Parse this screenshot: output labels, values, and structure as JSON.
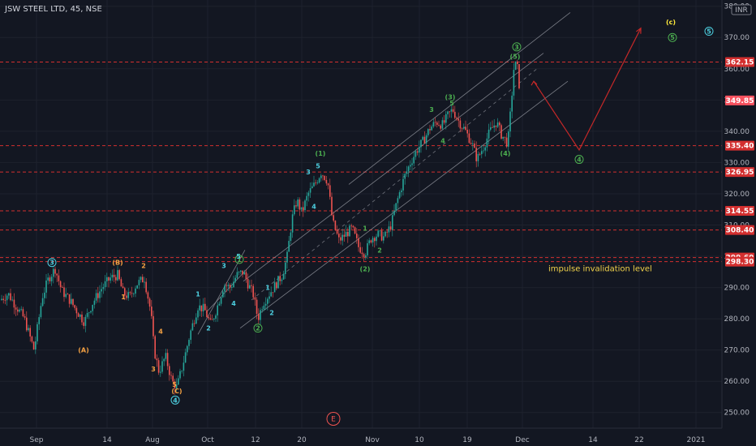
{
  "colors": {
    "background": "#131722",
    "grid": "#1e222d",
    "up": "#26a69a",
    "down": "#ef5350",
    "level": "#d32f2f",
    "channel": "#9598a1",
    "projection": "#c62828",
    "green": "#4caf50",
    "cyan": "#4dd0e1",
    "orange": "#f5a142",
    "yellow": "#ffeb3b"
  },
  "header": {
    "title": "JSW STEEL LTD, 45, NSE",
    "currency": "INR"
  },
  "chart_data": {
    "type": "candlestick",
    "title": "JSW STEEL LTD, 45, NSE",
    "ylim": [
      245,
      382
    ],
    "y_ticks": [
      "380.00",
      "370.00",
      "360.00",
      "350.00",
      "340.00",
      "330.00",
      "320.00",
      "310.00",
      "300.00",
      "290.00",
      "280.00",
      "270.00",
      "260.00",
      "250.00"
    ],
    "x_ticks": [
      "Sep",
      "14",
      "Aug",
      "Oct",
      "12",
      "20",
      "Nov",
      "10",
      "19",
      "Dec",
      "14",
      "22",
      "2021"
    ],
    "levels": [
      {
        "value": 362.15,
        "label": "362.15"
      },
      {
        "value": 335.4,
        "label": "335.40"
      },
      {
        "value": 326.95,
        "label": "326.95"
      },
      {
        "value": 314.55,
        "label": "314.55"
      },
      {
        "value": 308.4,
        "label": "308.40"
      },
      {
        "value": 299.6,
        "label": "299.60"
      },
      {
        "value": 298.3,
        "label": "298.30"
      }
    ],
    "current_price": {
      "value": 349.85,
      "label": "349.85"
    },
    "price_path": [
      {
        "x": 0,
        "y": 286
      },
      {
        "x": 10,
        "y": 288
      },
      {
        "x": 20,
        "y": 284
      },
      {
        "x": 30,
        "y": 280
      },
      {
        "x": 42,
        "y": 270
      },
      {
        "x": 52,
        "y": 287
      },
      {
        "x": 60,
        "y": 293
      },
      {
        "x": 68,
        "y": 296
      },
      {
        "x": 76,
        "y": 289
      },
      {
        "x": 86,
        "y": 286
      },
      {
        "x": 96,
        "y": 282
      },
      {
        "x": 104,
        "y": 279
      },
      {
        "x": 114,
        "y": 285
      },
      {
        "x": 126,
        "y": 290
      },
      {
        "x": 136,
        "y": 293
      },
      {
        "x": 145,
        "y": 294
      },
      {
        "x": 152,
        "y": 288
      },
      {
        "x": 160,
        "y": 287
      },
      {
        "x": 168,
        "y": 291
      },
      {
        "x": 178,
        "y": 293
      },
      {
        "x": 186,
        "y": 282
      },
      {
        "x": 190,
        "y": 270
      },
      {
        "x": 196,
        "y": 263
      },
      {
        "x": 204,
        "y": 268
      },
      {
        "x": 212,
        "y": 260
      },
      {
        "x": 218,
        "y": 258
      },
      {
        "x": 226,
        "y": 266
      },
      {
        "x": 234,
        "y": 275
      },
      {
        "x": 244,
        "y": 284
      },
      {
        "x": 252,
        "y": 283
      },
      {
        "x": 260,
        "y": 278
      },
      {
        "x": 268,
        "y": 284
      },
      {
        "x": 276,
        "y": 291
      },
      {
        "x": 284,
        "y": 290
      },
      {
        "x": 292,
        "y": 294
      },
      {
        "x": 300,
        "y": 295
      },
      {
        "x": 306,
        "y": 291
      },
      {
        "x": 312,
        "y": 288
      },
      {
        "x": 318,
        "y": 280
      },
      {
        "x": 324,
        "y": 285
      },
      {
        "x": 332,
        "y": 288
      },
      {
        "x": 340,
        "y": 291
      },
      {
        "x": 348,
        "y": 294
      },
      {
        "x": 354,
        "y": 300
      },
      {
        "x": 360,
        "y": 312
      },
      {
        "x": 366,
        "y": 318
      },
      {
        "x": 372,
        "y": 314
      },
      {
        "x": 380,
        "y": 320
      },
      {
        "x": 388,
        "y": 323
      },
      {
        "x": 396,
        "y": 327
      },
      {
        "x": 404,
        "y": 324
      },
      {
        "x": 410,
        "y": 311
      },
      {
        "x": 418,
        "y": 305
      },
      {
        "x": 426,
        "y": 307
      },
      {
        "x": 434,
        "y": 309
      },
      {
        "x": 442,
        "y": 303
      },
      {
        "x": 450,
        "y": 301
      },
      {
        "x": 458,
        "y": 306
      },
      {
        "x": 466,
        "y": 307
      },
      {
        "x": 474,
        "y": 306
      },
      {
        "x": 482,
        "y": 310
      },
      {
        "x": 490,
        "y": 318
      },
      {
        "x": 498,
        "y": 325
      },
      {
        "x": 506,
        "y": 330
      },
      {
        "x": 514,
        "y": 334
      },
      {
        "x": 522,
        "y": 337
      },
      {
        "x": 530,
        "y": 341
      },
      {
        "x": 538,
        "y": 343
      },
      {
        "x": 546,
        "y": 342
      },
      {
        "x": 552,
        "y": 345
      },
      {
        "x": 558,
        "y": 347
      },
      {
        "x": 566,
        "y": 343
      },
      {
        "x": 574,
        "y": 340
      },
      {
        "x": 582,
        "y": 336
      },
      {
        "x": 588,
        "y": 331
      },
      {
        "x": 596,
        "y": 335
      },
      {
        "x": 604,
        "y": 340
      },
      {
        "x": 612,
        "y": 343
      },
      {
        "x": 618,
        "y": 339
      },
      {
        "x": 626,
        "y": 336
      },
      {
        "x": 630,
        "y": 348
      },
      {
        "x": 634,
        "y": 362
      },
      {
        "x": 638,
        "y": 360
      },
      {
        "x": 642,
        "y": 350
      }
    ],
    "channels": [
      {
        "x1": 244,
        "y1": 275,
        "x2": 302,
        "y2": 302
      },
      {
        "x1": 254,
        "y1": 282,
        "x2": 312,
        "y2": 298
      },
      {
        "x1": 296,
        "y1": 277,
        "x2": 700,
        "y2": 356
      },
      {
        "x1": 300,
        "y1": 292,
        "x2": 670,
        "y2": 365
      },
      {
        "x1": 430,
        "y1": 323,
        "x2": 703,
        "y2": 378
      }
    ],
    "projection": [
      {
        "x": 658,
        "y": 356
      },
      {
        "x": 714,
        "y": 334
      },
      {
        "x": 790,
        "y": 373
      }
    ],
    "wave_labels": [
      {
        "text": "(1)",
        "x": 395,
        "y": 333,
        "color": "green"
      },
      {
        "text": "(2)",
        "x": 450,
        "y": 296,
        "color": "green"
      },
      {
        "text": "(3)",
        "x": 555,
        "y": 351,
        "color": "green"
      },
      {
        "text": "(4)",
        "x": 623,
        "y": 333,
        "color": "green"
      },
      {
        "text": "(5)",
        "x": 635,
        "y": 364,
        "color": "green"
      },
      {
        "text": "1",
        "x": 295,
        "y": 299,
        "color": "green",
        "circled": true
      },
      {
        "text": "2",
        "x": 318,
        "y": 277,
        "color": "green",
        "circled": true
      },
      {
        "text": "3",
        "x": 637,
        "y": 367,
        "color": "green",
        "circled": true
      },
      {
        "text": "4",
        "x": 714,
        "y": 331,
        "color": "green",
        "circled": true
      },
      {
        "text": "5",
        "x": 829,
        "y": 370,
        "color": "green",
        "circled": true
      },
      {
        "text": "3",
        "x": 64,
        "y": 298,
        "color": "cyan",
        "circled": true
      },
      {
        "text": "4",
        "x": 216,
        "y": 254,
        "color": "cyan",
        "circled": true
      },
      {
        "text": "5",
        "x": 874,
        "y": 372,
        "color": "cyan",
        "circled": true
      },
      {
        "text": "(c)",
        "x": 827,
        "y": 375,
        "color": "yellow"
      },
      {
        "text": "1",
        "x": 244,
        "y": 288,
        "color": "cyan"
      },
      {
        "text": "2",
        "x": 257,
        "y": 277,
        "color": "cyan"
      },
      {
        "text": "3",
        "x": 276,
        "y": 297,
        "color": "cyan"
      },
      {
        "text": "4",
        "x": 288,
        "y": 285,
        "color": "cyan"
      },
      {
        "text": "5",
        "x": 294,
        "y": 300,
        "color": "cyan"
      },
      {
        "text": "1",
        "x": 330,
        "y": 290,
        "color": "cyan"
      },
      {
        "text": "2",
        "x": 335,
        "y": 282,
        "color": "cyan"
      },
      {
        "text": "3",
        "x": 380,
        "y": 327,
        "color": "cyan"
      },
      {
        "text": "4",
        "x": 387,
        "y": 316,
        "color": "cyan"
      },
      {
        "text": "5",
        "x": 392,
        "y": 329,
        "color": "cyan"
      },
      {
        "text": "1",
        "x": 450,
        "y": 309,
        "color": "green"
      },
      {
        "text": "2",
        "x": 468,
        "y": 302,
        "color": "green"
      },
      {
        "text": "3",
        "x": 532,
        "y": 347,
        "color": "green"
      },
      {
        "text": "4",
        "x": 546,
        "y": 337,
        "color": "green"
      },
      {
        "text": "5",
        "x": 557,
        "y": 349,
        "color": "green"
      },
      {
        "text": "(A)",
        "x": 103,
        "y": 270,
        "color": "orange"
      },
      {
        "text": "(B)",
        "x": 145,
        "y": 298,
        "color": "orange"
      },
      {
        "text": "(C)",
        "x": 218,
        "y": 257,
        "color": "orange"
      },
      {
        "text": "1",
        "x": 152,
        "y": 287,
        "color": "orange"
      },
      {
        "text": "2",
        "x": 177,
        "y": 297,
        "color": "orange"
      },
      {
        "text": "3",
        "x": 189,
        "y": 264,
        "color": "orange"
      },
      {
        "text": "4",
        "x": 198,
        "y": 276,
        "color": "orange"
      },
      {
        "text": "5",
        "x": 215,
        "y": 259,
        "color": "orange"
      }
    ],
    "annotations": [
      {
        "text": "impulse invalidation level",
        "x": 676,
        "y": 296
      }
    ],
    "event_marker": {
      "text": "E",
      "x": 411,
      "y": 248
    }
  }
}
